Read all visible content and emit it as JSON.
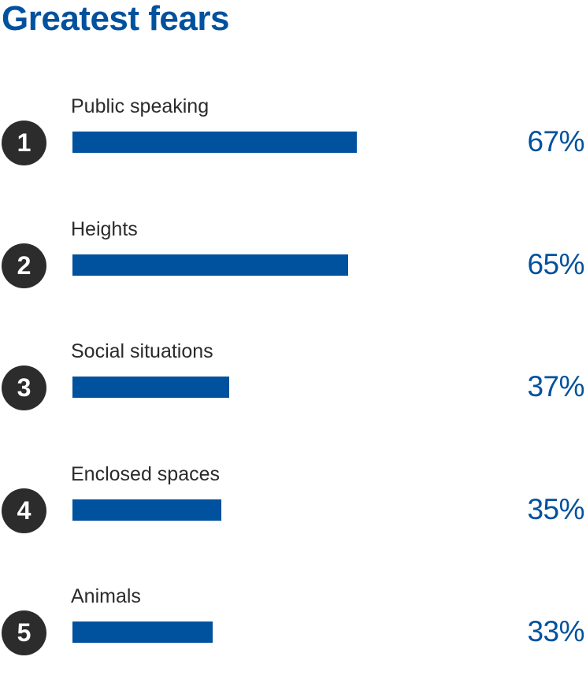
{
  "colors": {
    "accent": "#00519e",
    "badge": "#2c2c2c",
    "label": "#2b2b2b"
  },
  "chart_data": {
    "type": "bar",
    "orientation": "horizontal",
    "title": "Greatest fears",
    "xlabel": "",
    "ylabel": "",
    "xlim": [
      0,
      100
    ],
    "grid": false,
    "categories": [
      "Public speaking",
      "Heights",
      "Social situations",
      "Enclosed spaces",
      "Animals"
    ],
    "ranks": [
      "1",
      "2",
      "3",
      "4",
      "5"
    ],
    "values": [
      67,
      65,
      37,
      35,
      33
    ],
    "value_labels": [
      "67%",
      "65%",
      "37%",
      "35%",
      "33%"
    ]
  }
}
